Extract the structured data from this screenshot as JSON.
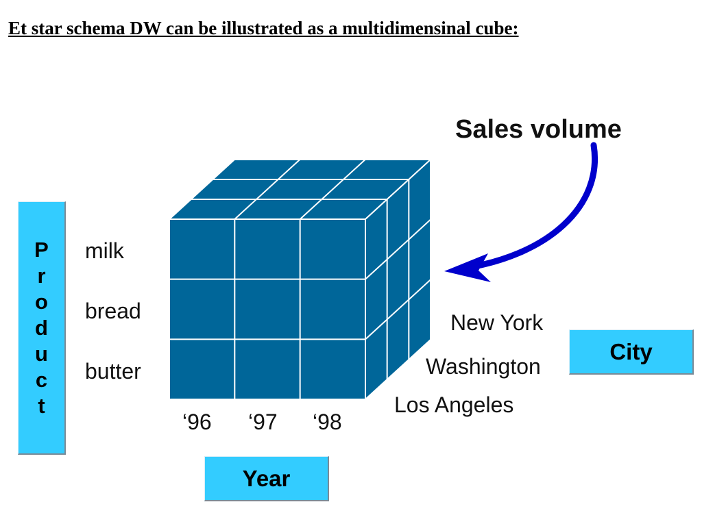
{
  "title": "Et star schema DW can be illustrated as a multidimensinal cube:",
  "measure_label": "Sales volume",
  "dimensions": {
    "product": {
      "label": "Product",
      "letters": [
        "P",
        "r",
        "o",
        "d",
        "u",
        "c",
        "t"
      ],
      "members": [
        "milk",
        "bread",
        "butter"
      ]
    },
    "year": {
      "label": "Year",
      "members": [
        "‘96",
        "‘97",
        "‘98"
      ]
    },
    "city": {
      "label": "City",
      "members": [
        "New York",
        "Washington",
        "Los Angeles"
      ]
    }
  },
  "colors": {
    "cube_fill": "#006699",
    "cube_lines": "#ffffff",
    "label_box": "#33ccff",
    "arrow": "#0000cc"
  }
}
